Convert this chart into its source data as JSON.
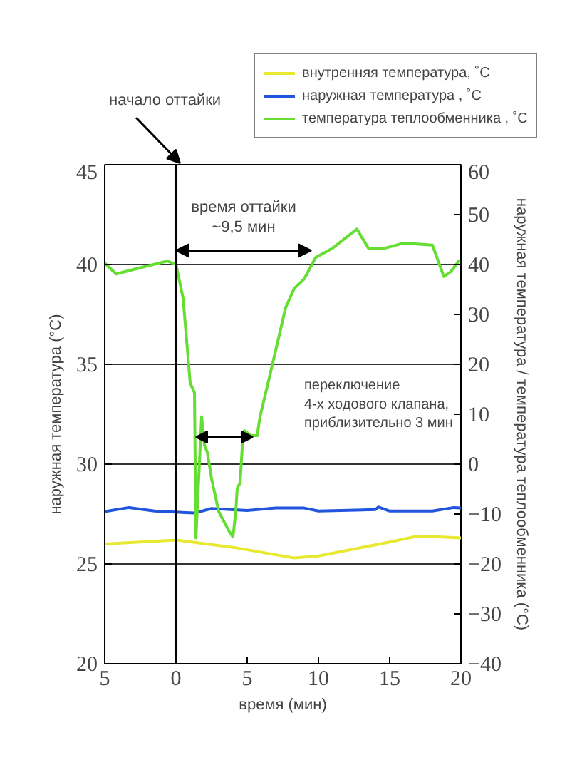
{
  "chart_data": {
    "type": "line",
    "xlabel": "время (мин)",
    "ylabel": "наружная температура (°C)",
    "y2label": "наружная температура / температура теплообменника (°C)",
    "xlim": [
      -5,
      20
    ],
    "xticks": [
      {
        "value": -5,
        "label": "5"
      },
      0,
      5,
      10,
      15,
      20
    ],
    "ylim": [
      20,
      45
    ],
    "yticks": [
      20,
      25,
      30,
      35,
      40,
      45
    ],
    "y2lim": [
      -40,
      60
    ],
    "y2ticks": [
      -40,
      -30,
      -20,
      -10,
      0,
      10,
      20,
      30,
      40,
      50,
      60
    ],
    "grid": "y",
    "legend": "top right",
    "line_style": "solid",
    "marker": "none",
    "series": [
      {
        "name": "внутренняя температура, ˚C",
        "color": "#e8e830",
        "axis": "y",
        "x": [
          -5,
          0,
          4.3,
          8.3,
          10,
          15,
          17,
          20
        ],
        "values": [
          26.0,
          26.2,
          25.8,
          25.3,
          25.4,
          26.1,
          26.4,
          26.3
        ]
      },
      {
        "name": "наружная температура , ˚C",
        "color": "#2255dd",
        "axis": "y2",
        "x": [
          -5,
          -3.3,
          -1.5,
          1.3,
          2.5,
          5,
          7,
          9,
          10,
          14,
          14.2,
          15,
          18,
          19.5,
          20
        ],
        "values": [
          -9.5,
          -8.7,
          -9.4,
          -9.8,
          -8.9,
          -9.3,
          -8.8,
          -8.8,
          -9.4,
          -9.1,
          -8.6,
          -9.4,
          -9.4,
          -8.7,
          -8.8
        ]
      },
      {
        "name": "температура теплообменника , ˚C",
        "color": "#66dd33",
        "axis": "y2",
        "x": [
          -5,
          -4.2,
          -2.3,
          -0.6,
          0,
          0.5,
          1.0,
          1.3,
          1.4,
          1.8,
          2.0,
          2.2,
          2.5,
          3.0,
          3.7,
          4.0,
          4.2,
          4.3,
          4.5,
          4.7,
          4.8,
          5.3,
          5.7,
          5.9,
          6.7,
          7.7,
          8.3,
          9.0,
          9.8,
          11.0,
          12.7,
          13.5,
          14.7,
          16.0,
          18.0,
          18.8,
          19.3,
          19.9
        ],
        "values": [
          40.3,
          38.1,
          39.5,
          40.7,
          40,
          33.3,
          16.2,
          14.3,
          -14.8,
          9.5,
          3.8,
          2.4,
          -2.9,
          -9.5,
          -13.3,
          -14.6,
          -9.5,
          -4.8,
          -3.8,
          5.7,
          6.7,
          5.7,
          5.7,
          9.5,
          19.1,
          31.4,
          35.2,
          37.1,
          41.4,
          43.3,
          47.1,
          43.3,
          43.3,
          44.3,
          43.9,
          37.6,
          38.6,
          40.9
        ]
      }
    ],
    "ref_lines": [
      {
        "axis": "x",
        "value": 0,
        "color": "#000000"
      }
    ],
    "annotations": [
      "начало оттайки",
      {
        "text": "время оттайки\n~9,5 мин",
        "x": 9.5,
        "y": 40.7
      },
      "переключение\n4-х ходового клапана,\nприблизительно 3 мин"
    ]
  }
}
